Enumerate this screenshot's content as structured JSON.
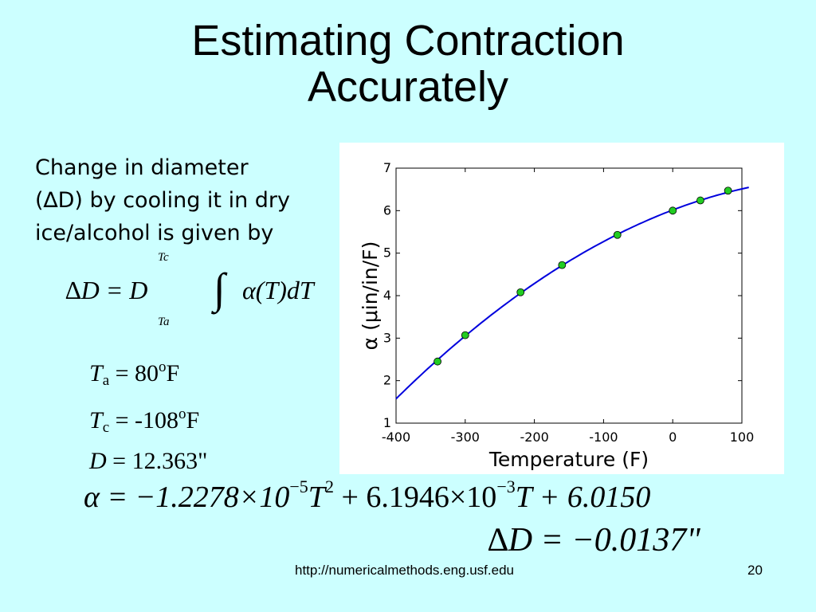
{
  "slide": {
    "title_line1": "Estimating Contraction",
    "title_line2": "Accurately",
    "desc_line1": "Change in diameter",
    "desc_line2": "(∆D) by cooling it in dry",
    "desc_line3": "ice/alcohol is given by"
  },
  "equation_integral": {
    "lhs": "∆D = D",
    "integral": "∫",
    "upper": "Tc",
    "lower": "Ta",
    "rhs": "α(T)dT"
  },
  "params": {
    "ta_label": "T",
    "ta_sub": "a",
    "ta_value": " = 80",
    "ta_sup": "o",
    "ta_unit": "F",
    "tc_label": "T",
    "tc_sub": "c",
    "tc_value": " = -108",
    "tc_sup": "o",
    "tc_unit": "F",
    "d_label": "D",
    "d_value": " = 12.363\""
  },
  "equation_alpha": {
    "part1": "α = −1.2278×10",
    "exp1": "−5",
    "part2": "T",
    "exp2": "2",
    "part3": " + 6.1946×10",
    "exp3": "−3",
    "part4": "T + 6.0150"
  },
  "equation_result": {
    "text": "∆D = −0.0137\""
  },
  "footer": {
    "url": "http://numericalmethods.eng.usf.edu",
    "page": "20"
  },
  "chart_data": {
    "type": "line",
    "xlabel": "Temperature (F)",
    "ylabel": "α (μin/in/F)",
    "xlim": [
      -400,
      100
    ],
    "ylim": [
      1,
      7
    ],
    "xticks": [
      -400,
      -300,
      -200,
      -100,
      0,
      100
    ],
    "yticks": [
      1,
      2,
      3,
      4,
      5,
      6,
      7
    ],
    "grid": false,
    "line_color": "#0000dd",
    "marker_color": "#22cc22",
    "points": [
      {
        "x": -340,
        "y": 2.45
      },
      {
        "x": -300,
        "y": 3.07
      },
      {
        "x": -220,
        "y": 4.08
      },
      {
        "x": -160,
        "y": 4.72
      },
      {
        "x": -80,
        "y": 5.43
      },
      {
        "x": 0,
        "y": 6.0
      },
      {
        "x": 40,
        "y": 6.24
      },
      {
        "x": 80,
        "y": 6.47
      }
    ],
    "curve": {
      "a": -1.2278e-05,
      "b": 0.0061946,
      "c": 6.015
    }
  }
}
